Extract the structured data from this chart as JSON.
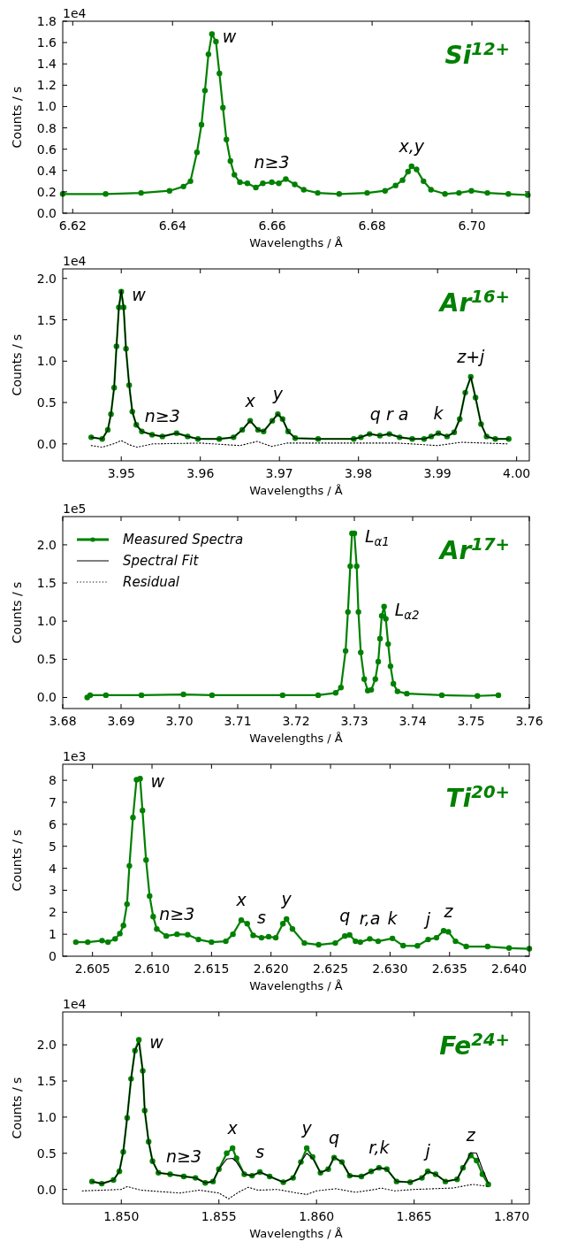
{
  "chart_data": [
    {
      "type": "line",
      "title": "Si$^{12+}$",
      "xlabel": "Wavelengths / Å",
      "ylabel": "Counts / s",
      "xlim": [
        6.618,
        6.7115
      ],
      "ylim": [
        0,
        1.8
      ],
      "xticks": [
        6.62,
        6.64,
        6.66,
        6.68,
        {
          "value": 6.7,
          "label": "6.70"
        }
      ],
      "yticks": [
        {
          "value": 0,
          "label": "0.0"
        },
        0.2,
        0.4,
        0.6,
        0.8,
        {
          "value": 1,
          "label": "1.0"
        },
        1.2,
        1.4,
        1.6,
        1.8
      ],
      "series": [
        {
          "color": "#008000",
          "marker": "circle",
          "line_style": "solid",
          "x": [
            6.618,
            6.6266,
            6.6337,
            6.6394,
            6.6422,
            6.6436,
            6.6449,
            6.6458,
            6.6465,
            6.6472,
            6.6479,
            6.6487,
            6.6494,
            6.6501,
            6.6508,
            6.6516,
            6.6524,
            6.6535,
            6.655,
            6.6567,
            6.6581,
            6.6599,
            6.6613,
            6.6627,
            6.6645,
            6.6663,
            6.6691,
            6.6734,
            6.679,
            6.6826,
            6.6847,
            6.6861,
            6.6872,
            6.6879,
            6.6889,
            6.6903,
            6.6918,
            6.6946,
            6.6974,
            6.6999,
            6.7031,
            6.7073,
            6.7112
          ],
          "values": [
            0.18,
            0.18,
            0.19,
            0.21,
            0.25,
            0.3,
            0.57,
            0.83,
            1.15,
            1.49,
            1.68,
            1.61,
            1.31,
            0.99,
            0.69,
            0.49,
            0.36,
            0.29,
            0.28,
            0.24,
            0.28,
            0.29,
            0.28,
            0.32,
            0.27,
            0.22,
            0.19,
            0.18,
            0.19,
            0.21,
            0.26,
            0.31,
            0.39,
            0.44,
            0.41,
            0.3,
            0.22,
            0.18,
            0.19,
            0.21,
            0.19,
            0.18,
            0.17
          ]
        }
      ],
      "annotations": [
        "1e4",
        {
          "text": "w",
          "x": 6.6479,
          "y": 1.68
        },
        {
          "text": "n≥3",
          "x": 6.6599,
          "y": 0.29
        },
        {
          "text": "x,y",
          "x": 6.6879,
          "y": 0.44
        }
      ]
    },
    {
      "type": "line",
      "title": "Ar$^{16+}$",
      "xlabel": "Wavelengths / Å",
      "ylabel": "Counts / s",
      "xlim": [
        3.9426,
        4.0016
      ],
      "ylim": [
        -0.205,
        2.115
      ],
      "xticks": [
        3.95,
        3.96,
        3.97,
        3.98,
        3.99,
        {
          "value": 4,
          "label": "4.00"
        }
      ],
      "yticks": [
        {
          "value": 0,
          "label": "0.0"
        },
        0.5,
        {
          "value": 1,
          "label": "1.0"
        },
        1.5,
        {
          "value": 2,
          "label": "2.0"
        }
      ],
      "series": [
        {
          "color": "#008000",
          "marker": "circle",
          "line_style": "solid",
          "x": [
            3.9462,
            3.9476,
            3.9483,
            3.9487,
            3.9491,
            3.9494,
            3.9497,
            3.95,
            3.9503,
            3.9506,
            3.951,
            3.9514,
            3.9519,
            3.9526,
            3.9539,
            3.9552,
            3.957,
            3.9584,
            3.9597,
            3.9624,
            3.9642,
            3.9653,
            3.9663,
            3.9673,
            3.968,
            3.9691,
            3.9698,
            3.9704,
            3.9711,
            3.972,
            3.9749,
            3.9794,
            3.9803,
            3.9814,
            3.9827,
            3.9839,
            3.9852,
            3.9868,
            3.9883,
            3.9892,
            3.9901,
            3.9912,
            3.9921,
            3.9928,
            3.9935,
            3.9942,
            3.9948,
            3.9955,
            3.9962,
            3.9973,
            3.999
          ],
          "values": [
            0.08,
            0.06,
            0.17,
            0.36,
            0.68,
            1.18,
            1.65,
            1.84,
            1.65,
            1.15,
            0.71,
            0.39,
            0.23,
            0.15,
            0.11,
            0.09,
            0.13,
            0.09,
            0.06,
            0.06,
            0.08,
            0.17,
            0.28,
            0.17,
            0.15,
            0.28,
            0.36,
            0.3,
            0.15,
            0.07,
            0.06,
            0.06,
            0.08,
            0.12,
            0.1,
            0.12,
            0.08,
            0.06,
            0.06,
            0.09,
            0.13,
            0.09,
            0.14,
            0.3,
            0.62,
            0.81,
            0.56,
            0.24,
            0.09,
            0.06,
            0.06
          ]
        },
        {
          "color": "#000000",
          "marker": "none",
          "line_style": "solid",
          "x": [
            3.9462,
            3.9476,
            3.9483,
            3.9487,
            3.9491,
            3.9494,
            3.9497,
            3.95,
            3.9503,
            3.9506,
            3.951,
            3.9514,
            3.9519,
            3.9526,
            3.9539,
            3.9552,
            3.957,
            3.9584,
            3.9597,
            3.9624,
            3.9642,
            3.9653,
            3.9663,
            3.9673,
            3.968,
            3.9691,
            3.9698,
            3.9704,
            3.9711,
            3.972,
            3.9749,
            3.9794,
            3.9803,
            3.9814,
            3.9827,
            3.9839,
            3.9852,
            3.9868,
            3.9883,
            3.9892,
            3.9901,
            3.9912,
            3.9921,
            3.9928,
            3.9935,
            3.9942,
            3.9948,
            3.9955,
            3.9962,
            3.9973,
            3.999
          ],
          "values": [
            0.08,
            0.06,
            0.17,
            0.36,
            0.68,
            1.18,
            1.65,
            1.86,
            1.65,
            1.15,
            0.71,
            0.39,
            0.23,
            0.15,
            0.11,
            0.09,
            0.13,
            0.09,
            0.06,
            0.06,
            0.08,
            0.17,
            0.28,
            0.17,
            0.15,
            0.28,
            0.36,
            0.3,
            0.15,
            0.07,
            0.06,
            0.06,
            0.08,
            0.12,
            0.1,
            0.12,
            0.08,
            0.06,
            0.06,
            0.09,
            0.13,
            0.09,
            0.14,
            0.3,
            0.62,
            0.81,
            0.56,
            0.24,
            0.09,
            0.06,
            0.06
          ]
        },
        {
          "color": "#000000",
          "marker": "none",
          "line_style": "dotted",
          "x": [
            3.9462,
            3.9476,
            3.949,
            3.95,
            3.951,
            3.952,
            3.954,
            3.96,
            3.965,
            3.9672,
            3.969,
            3.971,
            3.98,
            3.985,
            3.99,
            3.993,
            3.996,
            3.999
          ],
          "values": [
            -0.02,
            -0.04,
            0,
            0.04,
            -0.01,
            -0.04,
            0,
            0.01,
            -0.02,
            0.03,
            -0.03,
            0.01,
            0.01,
            0.01,
            -0.02,
            0.02,
            0.01,
            0
          ]
        }
      ],
      "annotations": [
        "1e4",
        {
          "text": "w",
          "x": 3.95,
          "y": 1.84
        },
        {
          "text": "n≥3",
          "x": 3.9552,
          "y": 0.09
        },
        {
          "text": "x",
          "x": 3.9663,
          "y": 0.28
        },
        {
          "text": "y",
          "x": 3.9698,
          "y": 0.36
        },
        {
          "text": "q r a",
          "x": 3.9839,
          "y": 0.12
        },
        {
          "text": "k",
          "x": 3.9901,
          "y": 0.13
        },
        {
          "text": "z+j",
          "x": 3.9942,
          "y": 0.81
        }
      ]
    },
    {
      "type": "line",
      "title": "Ar$^{17+}$",
      "xlabel": "Wavelengths / Å",
      "ylabel": "Counts / s",
      "xlim": [
        3.68,
        3.76
      ],
      "ylim": [
        -0.145,
        2.37
      ],
      "legend": "top left",
      "xticks": [
        3.68,
        3.69,
        {
          "value": 3.7,
          "label": "3.70"
        },
        3.71,
        3.72,
        3.73,
        3.74,
        3.75,
        3.76
      ],
      "yticks": [
        {
          "value": 0,
          "label": "0.0"
        },
        0.5,
        {
          "value": 1,
          "label": "1.0"
        },
        1.5,
        {
          "value": 2,
          "label": "2.0"
        }
      ],
      "series": [
        {
          "name": "Measured Spectra",
          "color": "#008000",
          "marker": "circle",
          "line_style": "solid",
          "x": [
            3.6842,
            3.6847,
            3.6874,
            3.6935,
            3.7007,
            3.7056,
            3.7177,
            3.7238,
            3.7268,
            3.7277,
            3.7285,
            3.7289,
            3.7293,
            3.7296,
            3.73,
            3.7304,
            3.7307,
            3.7311,
            3.7317,
            3.7323,
            3.7329,
            3.7336,
            3.7341,
            3.7344,
            3.7347,
            3.7351,
            3.7354,
            3.7358,
            3.7362,
            3.7367,
            3.7374,
            3.739,
            3.745,
            3.7511,
            3.7547
          ],
          "values": [
            0,
            0.03,
            0.03,
            0.03,
            0.04,
            0.03,
            0.03,
            0.03,
            0.06,
            0.13,
            0.61,
            1.12,
            1.72,
            2.15,
            2.15,
            1.72,
            1.12,
            0.59,
            0.24,
            0.09,
            0.1,
            0.24,
            0.47,
            0.77,
            1.07,
            1.19,
            1.03,
            0.7,
            0.41,
            0.18,
            0.08,
            0.05,
            0.03,
            0.02,
            0.03
          ]
        },
        {
          "name": "Spectral Fit",
          "color": "#000000",
          "marker": "none",
          "line_style": "solid"
        },
        {
          "name": "Residual",
          "color": "#000000",
          "marker": "none",
          "line_style": "dotted"
        }
      ],
      "annotations": [
        "1e5",
        {
          "text": "L$_{α1}$",
          "x": 3.73,
          "y": 2.15
        },
        {
          "text": "L$_{α2}$",
          "x": 3.7351,
          "y": 1.19
        }
      ]
    },
    {
      "type": "line",
      "title": "Ti$^{20+}$",
      "xlabel": "Wavelengths / Å",
      "ylabel": "Counts / s",
      "xlim": [
        2.6025,
        2.6417
      ],
      "ylim": [
        0,
        8.73
      ],
      "xticks": [
        2.605,
        {
          "value": 2.61,
          "label": "2.610"
        },
        2.615,
        {
          "value": 2.62,
          "label": "2.620"
        },
        2.625,
        {
          "value": 2.63,
          "label": "2.630"
        },
        2.635,
        {
          "value": 2.64,
          "label": "2.640"
        }
      ],
      "yticks": [
        0,
        1,
        2,
        3,
        4,
        5,
        6,
        7,
        8
      ],
      "series": [
        {
          "color": "#008000",
          "marker": "circle",
          "line_style": "solid",
          "x": [
            2.6036,
            2.6046,
            2.6058,
            2.6063,
            2.6069,
            2.6073,
            2.6076,
            2.6079,
            2.6081,
            2.6084,
            2.6087,
            2.609,
            2.6092,
            2.6095,
            2.6098,
            2.6101,
            2.6104,
            2.6112,
            2.6121,
            2.613,
            2.6139,
            2.615,
            2.6162,
            2.6168,
            2.6175,
            2.618,
            2.6185,
            2.6192,
            2.6198,
            2.6204,
            2.621,
            2.6213,
            2.6218,
            2.6228,
            2.624,
            2.6254,
            2.6262,
            2.6266,
            2.6271,
            2.6275,
            2.6283,
            2.629,
            2.6302,
            2.6311,
            2.6323,
            2.6332,
            2.6339,
            2.6345,
            2.6349,
            2.6355,
            2.6364,
            2.6382,
            2.64,
            2.6417
          ],
          "values": [
            0.64,
            0.64,
            0.71,
            0.64,
            0.79,
            1.03,
            1.4,
            2.37,
            4.11,
            6.31,
            8.03,
            8.08,
            6.63,
            4.38,
            2.74,
            1.8,
            1.24,
            0.92,
            1.0,
            0.98,
            0.76,
            0.64,
            0.68,
            1.0,
            1.64,
            1.48,
            0.95,
            0.84,
            0.89,
            0.84,
            1.48,
            1.69,
            1.24,
            0.6,
            0.52,
            0.6,
            0.92,
            0.97,
            0.68,
            0.64,
            0.79,
            0.68,
            0.81,
            0.48,
            0.47,
            0.76,
            0.84,
            1.16,
            1.11,
            0.68,
            0.44,
            0.44,
            0.37,
            0.34
          ]
        }
      ],
      "annotations": [
        "1e3",
        {
          "text": "w",
          "x": 2.609,
          "y": 8.08
        },
        {
          "text": "n≥3",
          "x": 2.6121,
          "y": 1.0
        },
        {
          "text": "x",
          "x": 2.6175,
          "y": 1.64
        },
        {
          "text": "s",
          "x": 2.6192,
          "y": 0.84
        },
        {
          "text": "y",
          "x": 2.6213,
          "y": 1.69
        },
        {
          "text": "q",
          "x": 2.6262,
          "y": 0.92
        },
        {
          "text": "r,a",
          "x": 2.6283,
          "y": 0.79
        },
        {
          "text": "k",
          "x": 2.6302,
          "y": 0.81
        },
        {
          "text": "j",
          "x": 2.6332,
          "y": 0.76
        },
        {
          "text": "z",
          "x": 2.6349,
          "y": 1.11
        }
      ]
    },
    {
      "type": "line",
      "title": "Fe$^{24+}$",
      "xlabel": "Wavelengths / Å",
      "ylabel": "Counts / s",
      "xlim": [
        1.847,
        1.8709
      ],
      "ylim": [
        -0.2,
        2.455
      ],
      "xticks": [
        {
          "value": 1.85,
          "label": "1.850"
        },
        1.855,
        {
          "value": 1.86,
          "label": "1.860"
        },
        1.865,
        {
          "value": 1.87,
          "label": "1.870"
        }
      ],
      "yticks": [
        {
          "value": 0,
          "label": "0.0"
        },
        0.5,
        {
          "value": 1,
          "label": "1.0"
        },
        1.5,
        {
          "value": 2,
          "label": "2.0"
        }
      ],
      "series": [
        {
          "color": "#008000",
          "marker": "circle",
          "line_style": "solid",
          "x": [
            1.8485,
            1.849,
            1.8496,
            1.8499,
            1.8501,
            1.8503,
            1.8505,
            1.8507,
            1.8509,
            1.8511,
            1.8512,
            1.8514,
            1.8516,
            1.8519,
            1.8525,
            1.8532,
            1.8538,
            1.8543,
            1.8547,
            1.855,
            1.8554,
            1.8557,
            1.8559,
            1.8563,
            1.8567,
            1.8571,
            1.8576,
            1.8583,
            1.8588,
            1.8592,
            1.8595,
            1.8598,
            1.8602,
            1.8606,
            1.8609,
            1.8613,
            1.8617,
            1.8623,
            1.8628,
            1.8632,
            1.8636,
            1.8641,
            1.8648,
            1.8654,
            1.8657,
            1.8661,
            1.8666,
            1.8672,
            1.8675,
            1.8679,
            1.8682,
            1.8685,
            1.8688
          ],
          "values": [
            0.11,
            0.08,
            0.13,
            0.25,
            0.52,
            0.99,
            1.53,
            1.92,
            2.07,
            1.64,
            1.09,
            0.66,
            0.39,
            0.23,
            0.21,
            0.18,
            0.16,
            0.09,
            0.11,
            0.28,
            0.5,
            0.57,
            0.43,
            0.21,
            0.19,
            0.24,
            0.18,
            0.1,
            0.16,
            0.38,
            0.57,
            0.45,
            0.23,
            0.28,
            0.44,
            0.38,
            0.19,
            0.18,
            0.25,
            0.3,
            0.28,
            0.11,
            0.1,
            0.16,
            0.25,
            0.21,
            0.11,
            0.14,
            0.3,
            0.47,
            0.4,
            0.21,
            0.07
          ]
        },
        {
          "color": "#000000",
          "marker": "none",
          "line_style": "solid",
          "x": [
            1.8485,
            1.849,
            1.8496,
            1.8499,
            1.8501,
            1.8503,
            1.8505,
            1.8507,
            1.8509,
            1.8511,
            1.8512,
            1.8514,
            1.8516,
            1.8519,
            1.8525,
            1.8532,
            1.8538,
            1.8543,
            1.8547,
            1.855,
            1.8554,
            1.8557,
            1.8559,
            1.8563,
            1.8567,
            1.8571,
            1.8576,
            1.8583,
            1.8588,
            1.8592,
            1.8595,
            1.8598,
            1.8602,
            1.8606,
            1.8609,
            1.8613,
            1.8617,
            1.8623,
            1.8628,
            1.8632,
            1.8636,
            1.8641,
            1.8648,
            1.8654,
            1.8657,
            1.8661,
            1.8666,
            1.8672,
            1.8675,
            1.8679,
            1.8682,
            1.8685,
            1.8688
          ],
          "values": [
            0.11,
            0.08,
            0.13,
            0.25,
            0.52,
            0.99,
            1.53,
            1.92,
            2.03,
            1.64,
            1.09,
            0.66,
            0.39,
            0.23,
            0.21,
            0.18,
            0.16,
            0.09,
            0.11,
            0.28,
            0.42,
            0.43,
            0.38,
            0.21,
            0.19,
            0.24,
            0.18,
            0.1,
            0.16,
            0.38,
            0.5,
            0.43,
            0.23,
            0.28,
            0.45,
            0.38,
            0.19,
            0.18,
            0.25,
            0.3,
            0.28,
            0.11,
            0.1,
            0.16,
            0.25,
            0.21,
            0.11,
            0.14,
            0.3,
            0.51,
            0.5,
            0.28,
            0.09
          ]
        },
        {
          "color": "#000000",
          "marker": "none",
          "line_style": "dotted",
          "x": [
            1.848,
            1.85,
            1.8503,
            1.851,
            1.852,
            1.853,
            1.854,
            1.855,
            1.8555,
            1.856,
            1.8565,
            1.857,
            1.858,
            1.859,
            1.8595,
            1.86,
            1.861,
            1.862,
            1.863,
            1.8633,
            1.864,
            1.865,
            1.866,
            1.867,
            1.868,
            1.8688
          ],
          "values": [
            -0.02,
            0,
            0.04,
            -0.01,
            -0.03,
            -0.05,
            -0.01,
            -0.05,
            -0.13,
            -0.04,
            0.03,
            -0.01,
            0,
            -0.05,
            -0.07,
            -0.02,
            0.01,
            -0.04,
            0,
            0.02,
            -0.02,
            0,
            0.01,
            0.02,
            0.07,
            0.04
          ]
        }
      ],
      "annotations": [
        "1e4",
        {
          "text": "w",
          "x": 1.8509,
          "y": 2.07
        },
        {
          "text": "n≥3",
          "x": 1.8532,
          "y": 0.18
        },
        {
          "text": "x",
          "x": 1.8557,
          "y": 0.57
        },
        {
          "text": "s",
          "x": 1.8571,
          "y": 0.24
        },
        {
          "text": "y",
          "x": 1.8595,
          "y": 0.57
        },
        {
          "text": "q",
          "x": 1.8609,
          "y": 0.44
        },
        {
          "text": "r,k",
          "x": 1.8632,
          "y": 0.3
        },
        {
          "text": "j",
          "x": 1.8657,
          "y": 0.25
        },
        {
          "text": "z",
          "x": 1.8679,
          "y": 0.47
        }
      ]
    }
  ]
}
